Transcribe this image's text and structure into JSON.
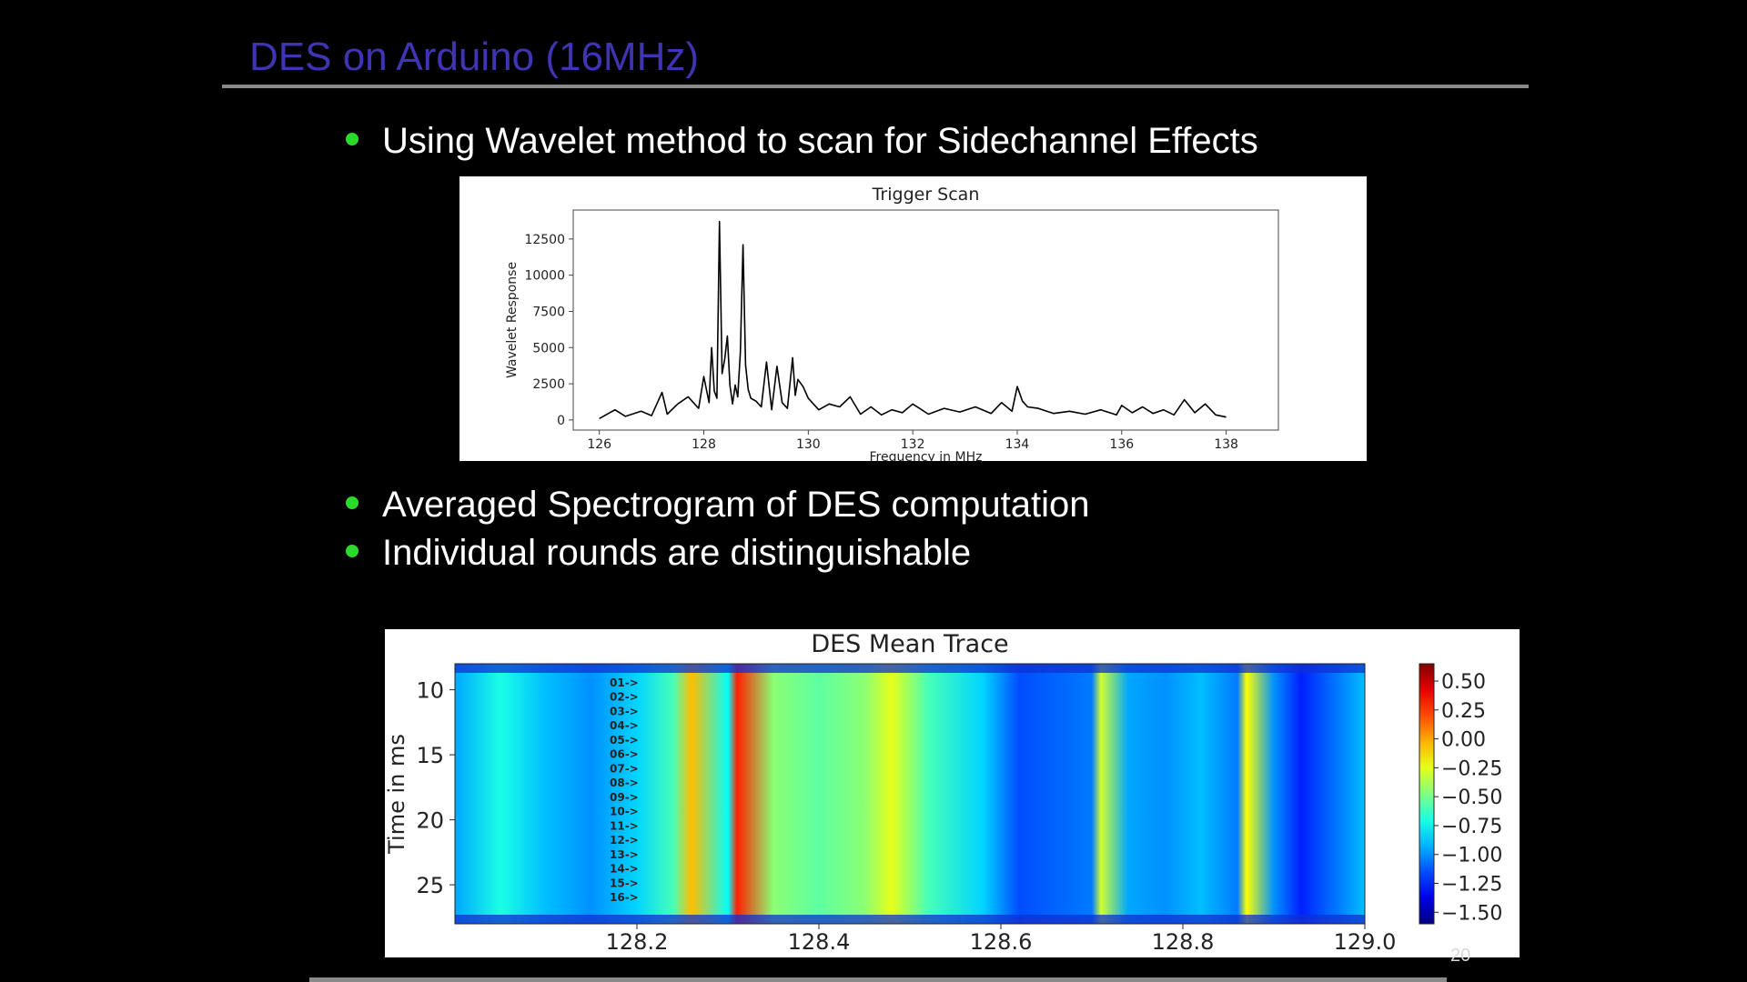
{
  "slide": {
    "title": "DES on Arduino (16MHz)",
    "bullets": [
      "Using Wavelet method to scan for Sidechannel Effects",
      "Averaged Spectrogram of DES computation",
      "Individual rounds are distinguishable"
    ],
    "page_number": "20",
    "colors": {
      "title": "#3f35b4",
      "bullet": "#2bd92b",
      "background": "#000000",
      "text": "#ffffff"
    }
  },
  "chart_data": [
    {
      "type": "line",
      "title": "Trigger Scan",
      "xlabel": "Frequency in MHz",
      "ylabel": "Wavelet Response",
      "xlim": [
        125.5,
        139.0
      ],
      "ylim": [
        -700,
        14500
      ],
      "xticks": [
        126,
        128,
        130,
        132,
        134,
        136,
        138
      ],
      "xtick_labels": [
        "126",
        "128",
        "130",
        "132",
        "134",
        "136",
        "138"
      ],
      "yticks": [
        0,
        2500,
        5000,
        7500,
        10000,
        12500
      ],
      "ytick_labels": [
        "0",
        "2500",
        "5000",
        "7500",
        "10000",
        "12500"
      ],
      "grid": false,
      "series": [
        {
          "color": "#000000",
          "x": [
            126.0,
            126.3,
            126.5,
            126.8,
            127.0,
            127.2,
            127.3,
            127.5,
            127.7,
            127.9,
            128.0,
            128.1,
            128.15,
            128.2,
            128.25,
            128.3,
            128.35,
            128.4,
            128.45,
            128.5,
            128.55,
            128.6,
            128.65,
            128.7,
            128.75,
            128.8,
            128.85,
            128.9,
            129.0,
            129.1,
            129.2,
            129.3,
            129.4,
            129.5,
            129.6,
            129.7,
            129.75,
            129.8,
            129.9,
            130.0,
            130.2,
            130.4,
            130.6,
            130.8,
            131.0,
            131.2,
            131.4,
            131.6,
            131.8,
            132.0,
            132.3,
            132.6,
            132.9,
            133.2,
            133.5,
            133.7,
            133.9,
            134.0,
            134.1,
            134.2,
            134.4,
            134.7,
            135.0,
            135.3,
            135.6,
            135.9,
            136.0,
            136.2,
            136.4,
            136.6,
            136.8,
            137.0,
            137.2,
            137.4,
            137.6,
            137.8,
            138.0
          ],
          "y": [
            100,
            700,
            250,
            600,
            300,
            1900,
            400,
            1100,
            1600,
            800,
            3000,
            1200,
            5000,
            2000,
            1500,
            13700,
            3200,
            4200,
            5800,
            2400,
            1100,
            2400,
            1600,
            4700,
            12100,
            3800,
            2100,
            1500,
            1300,
            900,
            4000,
            700,
            3700,
            1200,
            800,
            4300,
            1700,
            2800,
            2300,
            1500,
            700,
            1100,
            900,
            1600,
            400,
            900,
            350,
            700,
            500,
            1100,
            400,
            800,
            550,
            900,
            450,
            1200,
            600,
            2300,
            1300,
            900,
            800,
            450,
            600,
            400,
            700,
            350,
            1000,
            500,
            900,
            450,
            700,
            350,
            1400,
            500,
            1100,
            350,
            200
          ]
        }
      ]
    },
    {
      "type": "heatmap",
      "title": "DES Mean Trace",
      "xlabel": "",
      "ylabel": "Time in ms",
      "xlim": [
        128.0,
        129.0
      ],
      "ylim": [
        28,
        8
      ],
      "xticks": [
        128.2,
        128.4,
        128.6,
        128.8,
        129.0
      ],
      "xtick_labels": [
        "128.2",
        "128.4",
        "128.6",
        "128.8",
        "129.0"
      ],
      "yticks": [
        10,
        15,
        20,
        25
      ],
      "ytick_labels": [
        "10",
        "15",
        "20",
        "25"
      ],
      "colormap": "jet",
      "colorbar": {
        "vmin": -1.6,
        "vmax": 0.65,
        "ticks": [
          0.5,
          0.25,
          0.0,
          -0.25,
          -0.5,
          -0.75,
          -1.0,
          -1.25,
          -1.5
        ],
        "tick_labels": [
          "0.50",
          "0.25",
          "0.00",
          "−0.25",
          "−0.50",
          "−0.75",
          "−1.00",
          "−1.25",
          "−1.50"
        ]
      },
      "annotations": [
        "01->",
        "02->",
        "03->",
        "04->",
        "05->",
        "06->",
        "07->",
        "08->",
        "09->",
        "10->",
        "11->",
        "12->",
        "13->",
        "14->",
        "15->",
        "16->"
      ],
      "column_profile": {
        "x": [
          128.0,
          128.05,
          128.1,
          128.15,
          128.2,
          128.24,
          128.26,
          128.3,
          128.31,
          128.35,
          128.4,
          128.45,
          128.48,
          128.52,
          128.58,
          128.62,
          128.66,
          128.7,
          128.71,
          128.74,
          128.78,
          128.82,
          128.86,
          128.87,
          128.9,
          128.93,
          128.96,
          129.0
        ],
        "value": [
          -0.95,
          -0.7,
          -0.9,
          -1.0,
          -0.85,
          -0.6,
          -0.05,
          -0.75,
          0.3,
          -0.45,
          -0.55,
          -0.45,
          -0.25,
          -0.6,
          -0.85,
          -1.15,
          -1.1,
          -1.05,
          -0.3,
          -0.95,
          -1.0,
          -0.9,
          -1.05,
          -0.2,
          -1.0,
          -1.25,
          -1.1,
          -0.9
        ]
      }
    }
  ]
}
